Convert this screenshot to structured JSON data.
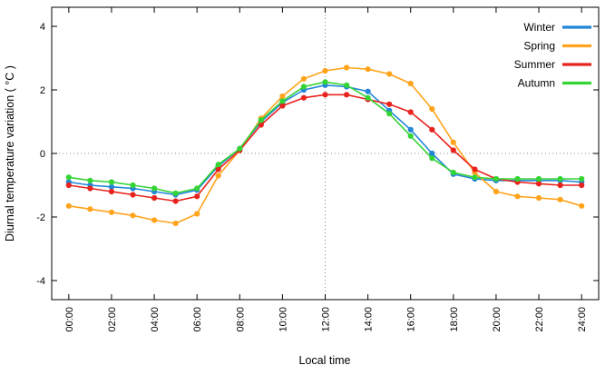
{
  "figure": {
    "xlabel": "Local time",
    "ylabel": "Diurnal temperature variation ( °C )"
  },
  "chart_data": {
    "type": "line",
    "title": "",
    "xlabel": "Local time",
    "ylabel": "Diurnal temperature variation ( °C )",
    "x_hours": [
      0,
      1,
      2,
      3,
      4,
      5,
      6,
      7,
      8,
      9,
      10,
      11,
      12,
      13,
      14,
      15,
      16,
      17,
      18,
      19,
      20,
      21,
      22,
      23,
      24
    ],
    "x_tick_hours": [
      0,
      2,
      4,
      6,
      8,
      10,
      12,
      14,
      16,
      18,
      20,
      22,
      24
    ],
    "x_tick_labels": [
      "00:00",
      "02:00",
      "04:00",
      "06:00",
      "08:00",
      "10:00",
      "12:00",
      "14:00",
      "16:00",
      "18:00",
      "20:00",
      "22:00",
      "24:00"
    ],
    "y_ticks": [
      -4,
      -2,
      0,
      2,
      4
    ],
    "y_tick_labels": [
      "-4",
      "-2",
      "0",
      "2",
      "4"
    ],
    "xlim": [
      -0.8,
      24.8
    ],
    "ylim": [
      -4.6,
      4.6
    ],
    "grid": {
      "h_dotted_at_y": 0,
      "v_dotted_at_x": 12,
      "grid_color": "#8a8a8a"
    },
    "legend_position": "top-right",
    "marker": "filled-circle",
    "series": [
      {
        "name": "Winter",
        "color": "#2285d8",
        "values": [
          -0.9,
          -1.0,
          -1.05,
          -1.1,
          -1.2,
          -1.3,
          -1.15,
          -0.4,
          0.15,
          1.0,
          1.6,
          2.0,
          2.15,
          2.1,
          1.95,
          1.35,
          0.75,
          0.0,
          -0.65,
          -0.8,
          -0.85,
          -0.85,
          -0.85,
          -0.85,
          -0.9
        ]
      },
      {
        "name": "Spring",
        "color": "#ffa41c",
        "values": [
          -1.65,
          -1.75,
          -1.85,
          -1.95,
          -2.1,
          -2.2,
          -1.9,
          -0.7,
          0.1,
          1.1,
          1.8,
          2.35,
          2.6,
          2.7,
          2.65,
          2.5,
          2.2,
          1.4,
          0.35,
          -0.6,
          -1.2,
          -1.35,
          -1.4,
          -1.45,
          -1.65
        ]
      },
      {
        "name": "Summer",
        "color": "#e8231d",
        "values": [
          -1.0,
          -1.1,
          -1.2,
          -1.3,
          -1.4,
          -1.5,
          -1.35,
          -0.5,
          0.1,
          0.9,
          1.5,
          1.75,
          1.85,
          1.85,
          1.7,
          1.55,
          1.3,
          0.75,
          0.1,
          -0.5,
          -0.8,
          -0.9,
          -0.95,
          -1.0,
          -1.0
        ]
      },
      {
        "name": "Autumn",
        "color": "#35d435",
        "values": [
          -0.75,
          -0.85,
          -0.9,
          -1.0,
          -1.1,
          -1.25,
          -1.1,
          -0.35,
          0.15,
          1.05,
          1.65,
          2.1,
          2.25,
          2.15,
          1.75,
          1.25,
          0.55,
          -0.15,
          -0.6,
          -0.75,
          -0.8,
          -0.8,
          -0.8,
          -0.8,
          -0.8
        ]
      }
    ]
  }
}
